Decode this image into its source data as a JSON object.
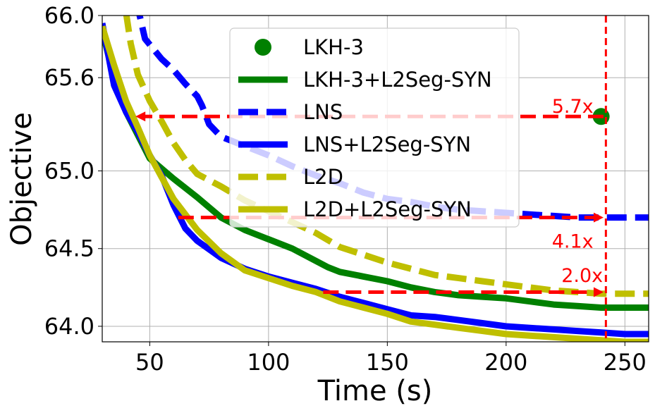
{
  "chart_data": {
    "type": "line",
    "title": "",
    "xlabel": "Time (s)",
    "ylabel": "Objective",
    "xlim": [
      30,
      260
    ],
    "ylim": [
      63.9,
      66.0
    ],
    "xticks": [
      50,
      100,
      150,
      200,
      250
    ],
    "yticks": [
      64.0,
      64.5,
      65.0,
      65.6,
      66.0
    ],
    "ytick_labels": [
      "64.0",
      "64.5",
      "65.0",
      "65.6",
      "66.0"
    ],
    "grid": true,
    "legend_position": "top-center",
    "series": [
      {
        "name": "LKH-3",
        "kind": "point",
        "color": "#008000",
        "x": [
          240
        ],
        "y": [
          65.35
        ]
      },
      {
        "name": "LKH-3+L2Seg-SYN",
        "kind": "line",
        "style": "solid",
        "color": "#008000",
        "x": [
          30,
          35,
          40,
          50,
          60,
          70,
          80,
          90,
          100,
          110,
          120,
          125,
          130,
          140,
          150,
          160,
          170,
          180,
          190,
          200,
          210,
          220,
          230,
          240,
          250,
          260
        ],
        "y": [
          65.9,
          65.6,
          65.38,
          65.08,
          64.95,
          64.83,
          64.7,
          64.62,
          64.56,
          64.5,
          64.42,
          64.38,
          64.35,
          64.32,
          64.29,
          64.25,
          64.22,
          64.2,
          64.19,
          64.18,
          64.16,
          64.14,
          64.13,
          64.12,
          64.12,
          64.12
        ]
      },
      {
        "name": "LNS",
        "kind": "line",
        "style": "dashed",
        "color": "#0000ff",
        "x": [
          30,
          45,
          48,
          55,
          60,
          65,
          70,
          72,
          75,
          80,
          90,
          100,
          110,
          120,
          130,
          140,
          150,
          160,
          170,
          180,
          190,
          200,
          210,
          220,
          230,
          240,
          250,
          260
        ],
        "y": [
          66.1,
          66.05,
          65.85,
          65.72,
          65.65,
          65.56,
          65.48,
          65.42,
          65.3,
          65.22,
          65.16,
          65.1,
          65.03,
          64.97,
          64.92,
          64.86,
          64.82,
          64.8,
          64.77,
          64.75,
          64.74,
          64.73,
          64.72,
          64.71,
          64.7,
          64.7,
          64.7,
          64.7
        ]
      },
      {
        "name": "LNS+L2Seg-SYN",
        "kind": "line",
        "style": "solid",
        "color": "#0000ff",
        "x": [
          30,
          35,
          40,
          45,
          50,
          55,
          60,
          65,
          70,
          80,
          90,
          100,
          110,
          120,
          130,
          140,
          150,
          160,
          170,
          180,
          190,
          200,
          210,
          220,
          230,
          240,
          250,
          260
        ],
        "y": [
          65.95,
          65.55,
          65.38,
          65.25,
          65.1,
          64.97,
          64.78,
          64.63,
          64.55,
          64.44,
          64.37,
          64.32,
          64.28,
          64.24,
          64.19,
          64.15,
          64.11,
          64.07,
          64.06,
          64.04,
          64.02,
          64.0,
          63.99,
          63.98,
          63.97,
          63.96,
          63.95,
          63.95
        ]
      },
      {
        "name": "L2D",
        "kind": "line",
        "style": "dashed",
        "color": "#bfbf00",
        "x": [
          40,
          42,
          45,
          50,
          55,
          60,
          65,
          70,
          80,
          90,
          100,
          110,
          120,
          130,
          140,
          150,
          160,
          170,
          180,
          190,
          200,
          210,
          220,
          230,
          240,
          250,
          260
        ],
        "y": [
          66.02,
          65.82,
          65.62,
          65.45,
          65.32,
          65.18,
          65.07,
          64.98,
          64.9,
          64.81,
          64.74,
          64.67,
          64.6,
          64.51,
          64.46,
          64.41,
          64.37,
          64.33,
          64.31,
          64.29,
          64.27,
          64.25,
          64.23,
          64.22,
          64.21,
          64.21,
          64.21
        ]
      },
      {
        "name": "L2D+L2Seg-SYN",
        "kind": "line",
        "style": "solid",
        "color": "#bfbf00",
        "x": [
          30,
          35,
          40,
          45,
          50,
          55,
          60,
          65,
          70,
          80,
          90,
          100,
          110,
          120,
          130,
          140,
          150,
          160,
          170,
          180,
          190,
          200,
          210,
          220,
          230,
          240,
          250,
          260
        ],
        "y": [
          65.93,
          65.68,
          65.45,
          65.28,
          65.1,
          64.96,
          64.82,
          64.72,
          64.62,
          64.47,
          64.36,
          64.31,
          64.26,
          64.22,
          64.16,
          64.12,
          64.08,
          64.03,
          64.01,
          63.99,
          63.97,
          63.95,
          63.94,
          63.93,
          63.92,
          63.91,
          63.9,
          63.9
        ]
      }
    ],
    "reference_line": {
      "x": 242,
      "color": "#ff0000",
      "style": "dashed"
    },
    "annotations": [
      {
        "text": "5.7x",
        "arrow_from_x": 241,
        "arrow_to_x": 44,
        "y": 65.35,
        "text_x": 228,
        "text_y": 65.42
      },
      {
        "text": "4.1x",
        "arrow_from_x": 62,
        "arrow_to_x": 241,
        "y": 64.7,
        "text_x": 228,
        "text_y": 64.55
      },
      {
        "text": "2.0x",
        "arrow_from_x": 123,
        "arrow_to_x": 241,
        "y": 64.22,
        "text_x": 232,
        "text_y": 64.33
      }
    ],
    "annotation_color": "#ff0000"
  }
}
